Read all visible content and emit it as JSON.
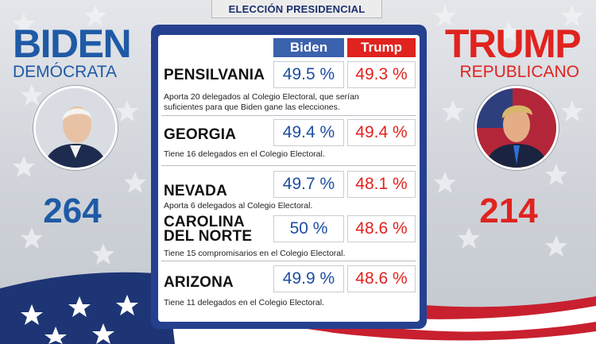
{
  "header": {
    "title": "ELECCIÓN PRESIDENCIAL"
  },
  "colors": {
    "biden_blue": "#1f5aa6",
    "trump_red": "#e0231f",
    "panel_navy": "#25408f"
  },
  "candidates": {
    "left": {
      "name": "BIDEN",
      "party": "DEMÓCRATA",
      "delegates": "264"
    },
    "right": {
      "name": "TRUMP",
      "party": "REPUBLICANO",
      "delegates": "214"
    }
  },
  "table": {
    "columns": [
      "Biden",
      "Trump"
    ],
    "rows": [
      {
        "state": "PENSILVANIA",
        "biden": "49.5 %",
        "trump": "49.3 %",
        "note": "Aporta 20 delegados al Colegio Electoral, que serían suficientes para que Biden gane las elecciones."
      },
      {
        "state": "GEORGIA",
        "biden": "49.4 %",
        "trump": "49.4 %",
        "note": "Tiene 16 delegados en el Colegio Electoral."
      },
      {
        "state": "NEVADA",
        "biden": "49.7 %",
        "trump": "48.1 %",
        "note": "Aporta 6 delegados al Colegio Electoral."
      },
      {
        "state": "CAROLINA DEL NORTE",
        "biden": "50 %",
        "trump": "48.6 %",
        "note": "Tiene 15 compromisarios en el Colegio Electoral."
      },
      {
        "state": "ARIZONA",
        "biden": "49.9 %",
        "trump": "48.6 %",
        "note": "Tiene 11 delegados en el Colegio Electoral."
      }
    ]
  }
}
